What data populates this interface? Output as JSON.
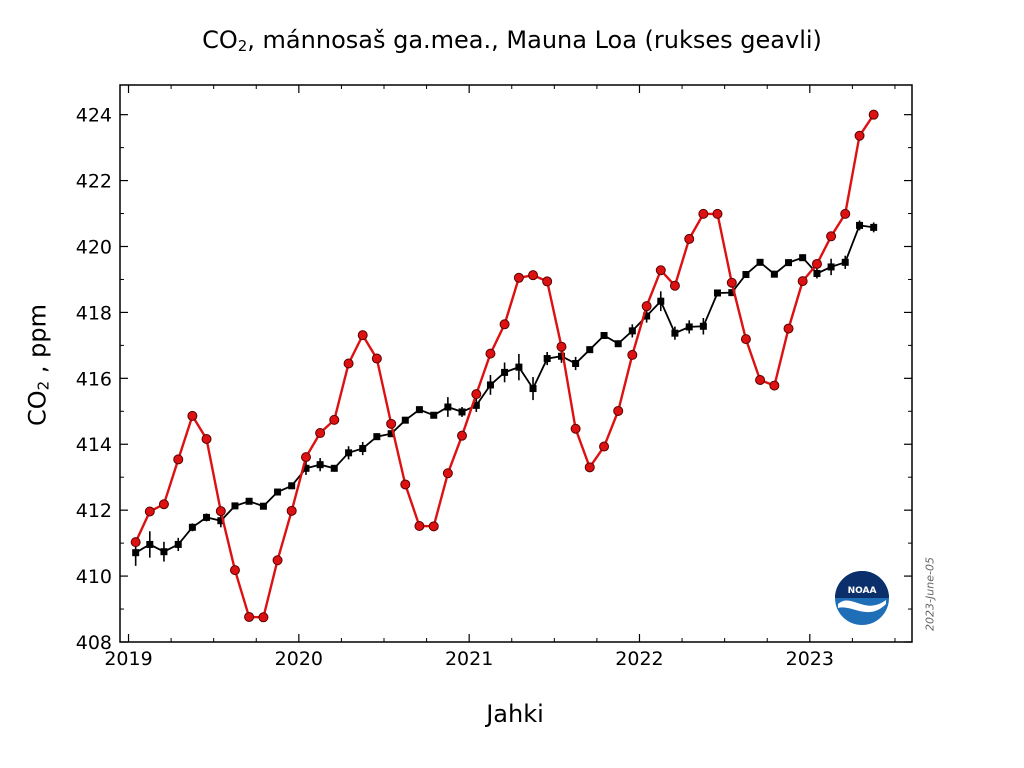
{
  "chart_data": {
    "type": "line",
    "title": "CO₂, mánnosaš ga.mea., Mauna Loa (rukses geavli)",
    "title_parts": {
      "pre": "CO",
      "sub": "2",
      "post": ", mánnosaš ga.mea., Mauna Loa (rukses geavli)"
    },
    "xlabel": "Jahki",
    "ylabel": "CO₂ , ppm",
    "ylabel_parts": {
      "pre": "CO",
      "sub": "2",
      "post": " , ppm"
    },
    "xlim": [
      2018.95,
      2023.6
    ],
    "ylim": [
      408,
      424.9
    ],
    "x_ticks": [
      2019,
      2020,
      2021,
      2022,
      2023
    ],
    "y_ticks": [
      408,
      410,
      412,
      414,
      416,
      418,
      420,
      422,
      424
    ],
    "grid": false,
    "datestamp": "2023-June-05",
    "logo": "NOAA",
    "colors": {
      "monthly_mean": "#dd1111",
      "deseasonalized": "#000000"
    },
    "series": [
      {
        "style": "red-line-circles",
        "x": [
          2019.042,
          2019.125,
          2019.208,
          2019.292,
          2019.375,
          2019.458,
          2019.542,
          2019.625,
          2019.708,
          2019.792,
          2019.875,
          2019.958,
          2020.042,
          2020.125,
          2020.208,
          2020.292,
          2020.375,
          2020.458,
          2020.542,
          2020.625,
          2020.708,
          2020.792,
          2020.875,
          2020.958,
          2021.042,
          2021.125,
          2021.208,
          2021.292,
          2021.375,
          2021.458,
          2021.542,
          2021.625,
          2021.708,
          2021.792,
          2021.875,
          2021.958,
          2022.042,
          2022.125,
          2022.208,
          2022.292,
          2022.375,
          2022.458,
          2022.542,
          2022.625,
          2022.708,
          2022.792,
          2022.875,
          2022.958,
          2023.042,
          2023.125,
          2023.208,
          2023.292,
          2023.375
        ],
        "values": [
          411.03,
          411.96,
          412.18,
          413.54,
          414.86,
          414.16,
          411.97,
          410.18,
          408.76,
          408.75,
          410.48,
          411.98,
          413.61,
          414.34,
          414.74,
          416.45,
          417.31,
          416.6,
          414.62,
          412.78,
          411.52,
          411.51,
          413.12,
          414.26,
          415.52,
          416.75,
          417.64,
          419.05,
          419.13,
          418.94,
          416.96,
          414.47,
          413.3,
          413.93,
          415.01,
          416.71,
          418.19,
          419.28,
          418.81,
          420.23,
          420.99,
          420.99,
          418.9,
          417.19,
          415.95,
          415.78,
          417.51,
          418.95,
          419.47,
          420.31,
          420.99,
          423.36,
          424.0
        ]
      },
      {
        "style": "black-line-squares-errorbars",
        "x": [
          2019.042,
          2019.125,
          2019.208,
          2019.292,
          2019.375,
          2019.458,
          2019.542,
          2019.625,
          2019.708,
          2019.792,
          2019.875,
          2019.958,
          2020.042,
          2020.125,
          2020.208,
          2020.292,
          2020.375,
          2020.458,
          2020.542,
          2020.625,
          2020.708,
          2020.792,
          2020.875,
          2020.958,
          2021.042,
          2021.125,
          2021.208,
          2021.292,
          2021.375,
          2021.458,
          2021.542,
          2021.625,
          2021.708,
          2021.792,
          2021.875,
          2021.958,
          2022.042,
          2022.125,
          2022.208,
          2022.292,
          2022.375,
          2022.458,
          2022.542,
          2022.625,
          2022.708,
          2022.792,
          2022.875,
          2022.958,
          2023.042,
          2023.125,
          2023.208,
          2023.292,
          2023.375
        ],
        "values": [
          410.71,
          410.96,
          410.74,
          410.96,
          411.48,
          411.78,
          411.68,
          412.13,
          412.27,
          412.12,
          412.55,
          412.74,
          413.27,
          413.38,
          413.27,
          413.74,
          413.87,
          414.23,
          414.32,
          414.73,
          415.05,
          414.88,
          415.13,
          414.98,
          415.18,
          415.8,
          416.18,
          416.34,
          415.69,
          416.6,
          416.67,
          416.45,
          416.87,
          417.3,
          417.05,
          417.44,
          417.89,
          418.34,
          417.37,
          417.56,
          417.58,
          418.59,
          418.6,
          419.15,
          419.52,
          419.16,
          419.51,
          419.66,
          419.18,
          419.38,
          419.52,
          420.64,
          420.58
        ],
        "uncertainty": [
          0.4,
          0.4,
          0.3,
          0.2,
          0.12,
          0.12,
          0.2,
          0.1,
          0.1,
          0.1,
          0.1,
          0.1,
          0.2,
          0.2,
          0.1,
          0.2,
          0.2,
          0.1,
          0.1,
          0.1,
          0.1,
          0.1,
          0.3,
          0.15,
          0.2,
          0.3,
          0.3,
          0.4,
          0.35,
          0.2,
          0.2,
          0.2,
          0.1,
          0.1,
          0.1,
          0.2,
          0.2,
          0.3,
          0.2,
          0.2,
          0.25,
          0.1,
          0.1,
          0.1,
          0.1,
          0.1,
          0.1,
          0.1,
          0.15,
          0.25,
          0.2,
          0.15,
          0.15
        ]
      }
    ]
  }
}
